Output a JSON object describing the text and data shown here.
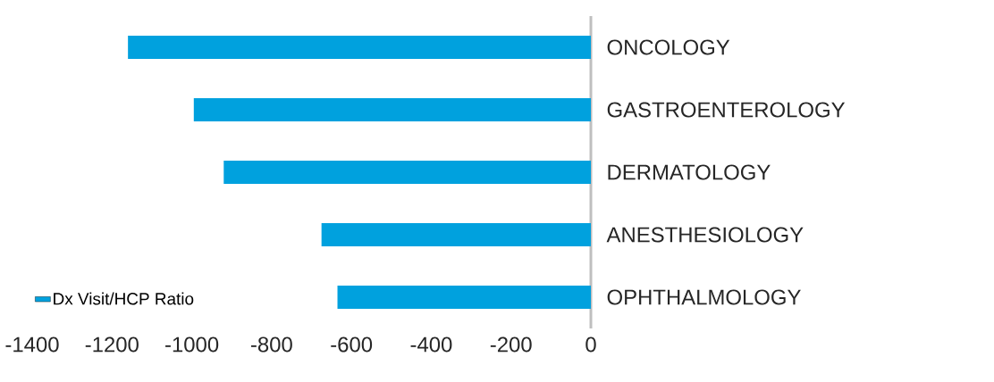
{
  "chart_data": {
    "type": "bar",
    "orientation": "horizontal",
    "categories": [
      "ONCOLOGY",
      "GASTROENTEROLOGY",
      "DERMATOLOGY",
      "ANESTHESIOLOGY",
      "OPHTHALMOLOGY"
    ],
    "series": [
      {
        "name": "Dx Visit/HCP Ratio",
        "color": "#00a1de",
        "values": [
          -1160,
          -995,
          -920,
          -675,
          -635
        ]
      }
    ],
    "xlim": [
      -1400,
      0
    ],
    "xticks": [
      -1400,
      -1200,
      -1000,
      -800,
      -600,
      -400,
      -200,
      0
    ],
    "grid": false,
    "legend": "bottom left"
  }
}
